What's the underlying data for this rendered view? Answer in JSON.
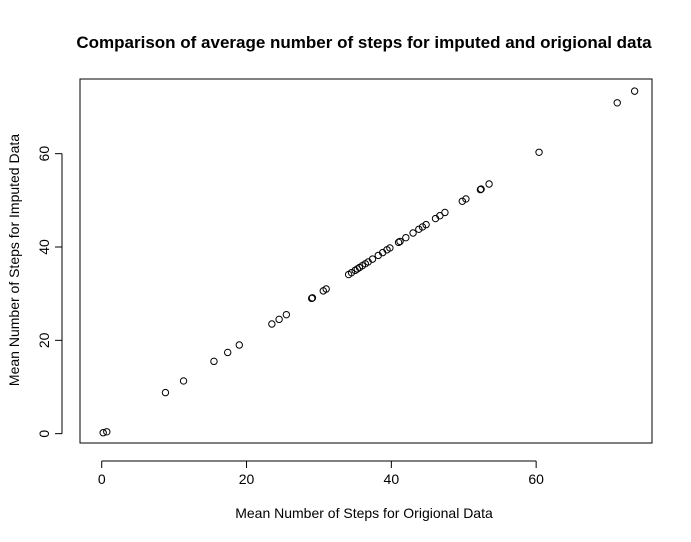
{
  "chart_data": {
    "type": "scatter",
    "title": "Comparison of average number of steps for imputed and origional data",
    "xlabel": "Mean Number of Steps for Origional Data",
    "ylabel": "Mean Number of Steps for Imputed Data",
    "xlim": [
      -3,
      76
    ],
    "ylim": [
      -2,
      76
    ],
    "xticks": [
      0,
      20,
      40,
      60
    ],
    "yticks": [
      0,
      20,
      40,
      60
    ],
    "xtick_labels": [
      "0",
      "20",
      "40",
      "60"
    ],
    "ytick_labels": [
      "0",
      "20",
      "40",
      "60"
    ],
    "grid": false,
    "legend": false,
    "marker": "open-circle",
    "color": "#000000",
    "points": [
      {
        "x": 0.2,
        "y": 0.2
      },
      {
        "x": 0.7,
        "y": 0.4
      },
      {
        "x": 8.8,
        "y": 8.8
      },
      {
        "x": 11.3,
        "y": 11.3
      },
      {
        "x": 15.5,
        "y": 15.5
      },
      {
        "x": 17.4,
        "y": 17.4
      },
      {
        "x": 19.0,
        "y": 19.0
      },
      {
        "x": 23.5,
        "y": 23.5
      },
      {
        "x": 24.5,
        "y": 24.5
      },
      {
        "x": 25.5,
        "y": 25.5
      },
      {
        "x": 29.0,
        "y": 29.0
      },
      {
        "x": 29.1,
        "y": 29.1
      },
      {
        "x": 30.6,
        "y": 30.6
      },
      {
        "x": 31.0,
        "y": 31.0
      },
      {
        "x": 34.1,
        "y": 34.1
      },
      {
        "x": 34.5,
        "y": 34.5
      },
      {
        "x": 35.0,
        "y": 35.0
      },
      {
        "x": 35.3,
        "y": 35.3
      },
      {
        "x": 35.6,
        "y": 35.6
      },
      {
        "x": 36.0,
        "y": 36.0
      },
      {
        "x": 36.4,
        "y": 36.4
      },
      {
        "x": 36.8,
        "y": 36.8
      },
      {
        "x": 37.4,
        "y": 37.4
      },
      {
        "x": 38.2,
        "y": 38.2
      },
      {
        "x": 38.8,
        "y": 38.8
      },
      {
        "x": 39.4,
        "y": 39.4
      },
      {
        "x": 39.8,
        "y": 39.8
      },
      {
        "x": 41.0,
        "y": 41.0
      },
      {
        "x": 41.2,
        "y": 41.2
      },
      {
        "x": 42.0,
        "y": 42.0
      },
      {
        "x": 43.0,
        "y": 43.0
      },
      {
        "x": 43.8,
        "y": 43.8
      },
      {
        "x": 44.3,
        "y": 44.3
      },
      {
        "x": 44.8,
        "y": 44.8
      },
      {
        "x": 46.1,
        "y": 46.1
      },
      {
        "x": 46.7,
        "y": 46.7
      },
      {
        "x": 47.4,
        "y": 47.4
      },
      {
        "x": 49.8,
        "y": 49.8
      },
      {
        "x": 50.3,
        "y": 50.3
      },
      {
        "x": 52.3,
        "y": 52.3
      },
      {
        "x": 52.4,
        "y": 52.4
      },
      {
        "x": 53.5,
        "y": 53.5
      },
      {
        "x": 60.4,
        "y": 60.3
      },
      {
        "x": 71.2,
        "y": 70.9
      },
      {
        "x": 73.6,
        "y": 73.4
      }
    ]
  }
}
